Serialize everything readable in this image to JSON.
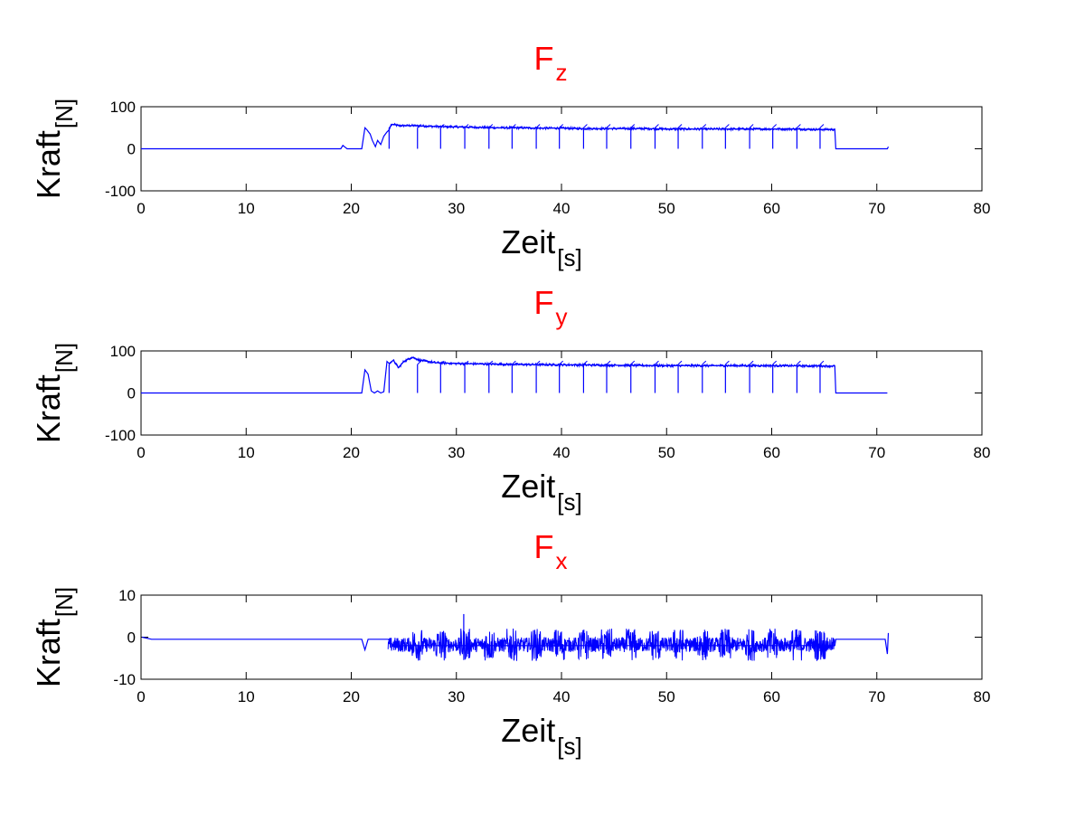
{
  "colors": {
    "series": "#0000ff",
    "title": "#ff0000",
    "axes": "#000000"
  },
  "chart_data": [
    {
      "type": "line",
      "title": {
        "main": "F",
        "sub": "z"
      },
      "xlabel": {
        "main": "Zeit",
        "sub": "[s]"
      },
      "ylabel": {
        "main": "Kraft",
        "sub": "[N]"
      },
      "xlim": [
        0,
        80
      ],
      "ylim": [
        -100,
        100
      ],
      "xticks": [
        0,
        10,
        20,
        30,
        40,
        50,
        60,
        70,
        80
      ],
      "yticks": [
        -100,
        0,
        100
      ],
      "grid": false,
      "series": [
        {
          "x": [
            0,
            17,
            19,
            19.2,
            19.6,
            21.0,
            21.3,
            21.5,
            21.8,
            22.0,
            22.3,
            22.5,
            22.8,
            23.1,
            23.4,
            23.6,
            23.8,
            24.0,
            24.5,
            26,
            28,
            30,
            32,
            34,
            36,
            38,
            40,
            42,
            44,
            46,
            48,
            50,
            52,
            54,
            56,
            58,
            60,
            62,
            64,
            66,
            66.1,
            68,
            70,
            71,
            71.1
          ],
          "y": [
            0,
            0,
            0,
            8,
            0,
            0,
            50,
            45,
            35,
            20,
            5,
            20,
            10,
            30,
            40,
            45,
            58,
            58,
            55,
            55,
            53,
            52,
            51,
            50,
            50,
            49,
            49,
            48,
            48,
            48,
            48,
            47,
            47,
            47,
            47,
            47,
            47,
            47,
            46,
            46,
            0,
            0,
            0,
            0,
            5
          ]
        }
      ],
      "dips": [
        23.6,
        26.3,
        28.5,
        30.8,
        33.1,
        35.3,
        37.6,
        39.8,
        42.1,
        44.3,
        46.6,
        48.9,
        51.1,
        53.4,
        55.6,
        57.9,
        60.1,
        62.4,
        64.6
      ]
    },
    {
      "type": "line",
      "title": {
        "main": "F",
        "sub": "y"
      },
      "xlabel": {
        "main": "Zeit",
        "sub": "[s]"
      },
      "ylabel": {
        "main": "Kraft",
        "sub": "[N]"
      },
      "xlim": [
        0,
        80
      ],
      "ylim": [
        -100,
        100
      ],
      "xticks": [
        0,
        10,
        20,
        30,
        40,
        50,
        60,
        70,
        80
      ],
      "yticks": [
        -100,
        0,
        100
      ],
      "grid": false,
      "series": [
        {
          "x": [
            0,
            19,
            21.0,
            21.3,
            21.6,
            21.9,
            22.2,
            22.5,
            22.8,
            23.1,
            23.4,
            23.6,
            24.0,
            24.5,
            25,
            25.8,
            26.5,
            28,
            30,
            35,
            40,
            45,
            50,
            55,
            60,
            65,
            66,
            66.1,
            70,
            71
          ],
          "y": [
            0,
            0,
            0,
            55,
            45,
            5,
            0,
            5,
            0,
            3,
            75,
            70,
            78,
            60,
            75,
            85,
            78,
            72,
            70,
            68,
            67,
            66,
            65,
            65,
            65,
            64,
            64,
            0,
            0,
            0
          ]
        }
      ],
      "dips": [
        23.6,
        26.3,
        28.5,
        30.8,
        33.1,
        35.3,
        37.6,
        39.8,
        42.1,
        44.3,
        46.6,
        48.9,
        51.1,
        53.4,
        55.6,
        57.9,
        60.1,
        62.4,
        64.6
      ]
    },
    {
      "type": "line",
      "title": {
        "main": "F",
        "sub": "x"
      },
      "xlabel": {
        "main": "Zeit",
        "sub": "[s]"
      },
      "ylabel": {
        "main": "Kraft",
        "sub": "[N]"
      },
      "xlim": [
        0,
        80
      ],
      "ylim": [
        -10,
        10
      ],
      "xticks": [
        0,
        10,
        20,
        30,
        40,
        50,
        60,
        70,
        80
      ],
      "yticks": [
        -10,
        0,
        10
      ],
      "grid": false,
      "series": [
        {
          "x": [
            0.1,
            1,
            19,
            21,
            21.3,
            21.6,
            22,
            23.5,
            24,
            66,
            66.1,
            70.8,
            71,
            71.1
          ],
          "y": [
            0,
            -0.5,
            -0.5,
            -0.5,
            -3,
            -0.5,
            -0.5,
            -0.5,
            -2,
            -2,
            -0.5,
            -0.5,
            -4,
            1
          ]
        }
      ],
      "noise_band": {
        "x_start": 23.5,
        "x_end": 66,
        "center": -1.8,
        "amplitude": 2.5
      },
      "bursts": [
        26.3,
        28.5,
        30.8,
        33.1,
        35.3,
        37.6,
        39.8,
        42.1,
        44.3,
        46.6,
        48.9,
        51.1,
        53.4,
        55.6,
        57.9,
        60.1,
        62.4,
        64.6
      ],
      "spike": {
        "x": 30.7,
        "y": 5.5
      }
    }
  ]
}
